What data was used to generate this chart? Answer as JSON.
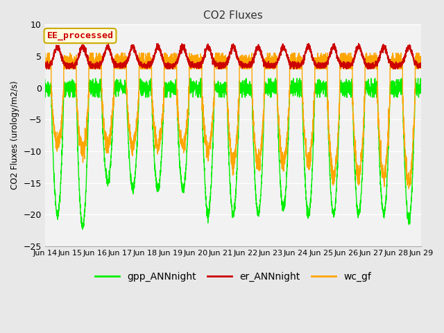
{
  "title": "CO2 Fluxes",
  "ylabel": "CO2 Fluxes (urology/m2/s)",
  "ylim": [
    -25,
    10
  ],
  "bg_color": "#e8e8e8",
  "plot_bg_color": "#f2f2f2",
  "grid_color": "#ffffff",
  "gpp_color": "#00ee00",
  "er_color": "#cc0000",
  "wc_color": "#ffa500",
  "legend_label": "EE_processed",
  "legend_box_color": "#ffffe0",
  "legend_box_edge": "#ccaa00",
  "x_tick_labels": [
    "Jun 14",
    "Jun 15",
    "Jun 16",
    "Jun 17",
    "Jun 18",
    "Jun 19",
    "Jun 20",
    "Jun 21",
    "Jun 22",
    "Jun 23",
    "Jun 24",
    "Jun 25",
    "Jun 26",
    "Jun 27",
    "Jun 28",
    "Jun 29"
  ],
  "y_ticks": [
    -25,
    -20,
    -15,
    -10,
    -5,
    0,
    5,
    10
  ],
  "n_days": 15,
  "ppd": 240
}
